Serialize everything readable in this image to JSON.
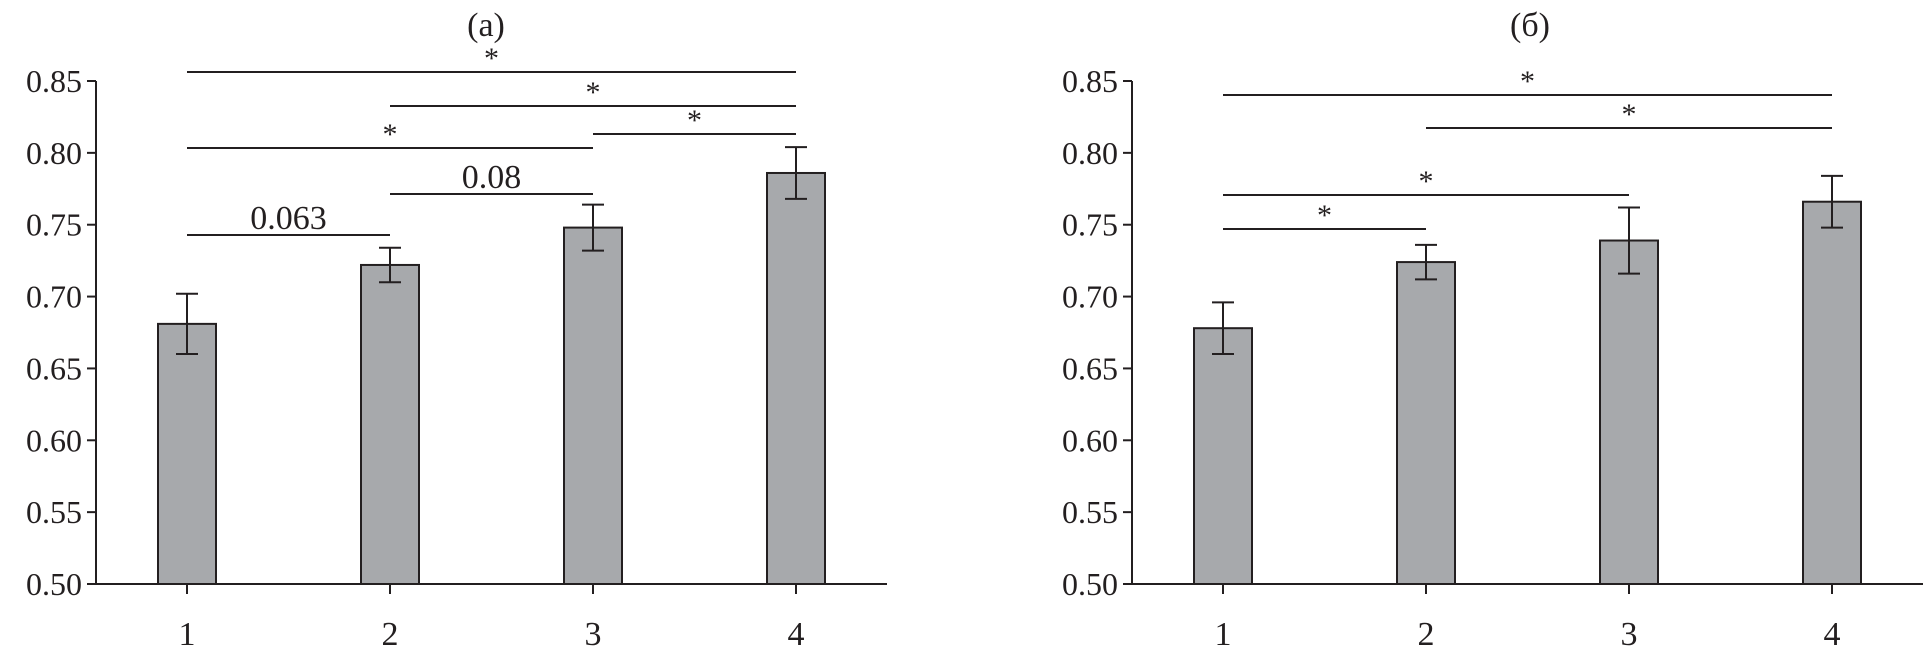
{
  "chart_data": [
    {
      "type": "bar",
      "title": "(a)",
      "categories": [
        "1",
        "2",
        "3",
        "4"
      ],
      "values": [
        0.681,
        0.722,
        0.748,
        0.786
      ],
      "errors": [
        0.021,
        0.012,
        0.016,
        0.018
      ],
      "ylim": [
        0.5,
        0.85
      ],
      "yticks": [
        "0.50",
        "0.55",
        "0.60",
        "0.65",
        "0.70",
        "0.75",
        "0.80",
        "0.85"
      ],
      "xlabel": "",
      "ylabel": "",
      "grid": false,
      "bar_color": "#a7a9ac",
      "comparisons": [
        {
          "from": "1",
          "to": "4",
          "label": "*"
        },
        {
          "from": "2",
          "to": "4",
          "label": "*"
        },
        {
          "from": "1",
          "to": "3",
          "label": "*"
        },
        {
          "from": "3",
          "to": "4",
          "label": "*"
        },
        {
          "from": "2",
          "to": "3",
          "label": "0.08"
        },
        {
          "from": "1",
          "to": "2",
          "label": "0.063"
        }
      ]
    },
    {
      "type": "bar",
      "title": "(б)",
      "categories": [
        "1",
        "2",
        "3",
        "4"
      ],
      "values": [
        0.678,
        0.724,
        0.739,
        0.766
      ],
      "errors": [
        0.018,
        0.012,
        0.023,
        0.018
      ],
      "ylim": [
        0.5,
        0.85
      ],
      "yticks": [
        "0.50",
        "0.55",
        "0.60",
        "0.65",
        "0.70",
        "0.75",
        "0.80",
        "0.85"
      ],
      "xlabel": "",
      "ylabel": "",
      "grid": false,
      "bar_color": "#a7a9ac",
      "comparisons": [
        {
          "from": "1",
          "to": "4",
          "label": "*"
        },
        {
          "from": "2",
          "to": "4",
          "label": "*"
        },
        {
          "from": "1",
          "to": "3",
          "label": "*"
        },
        {
          "from": "1",
          "to": "2",
          "label": "*"
        }
      ]
    }
  ]
}
